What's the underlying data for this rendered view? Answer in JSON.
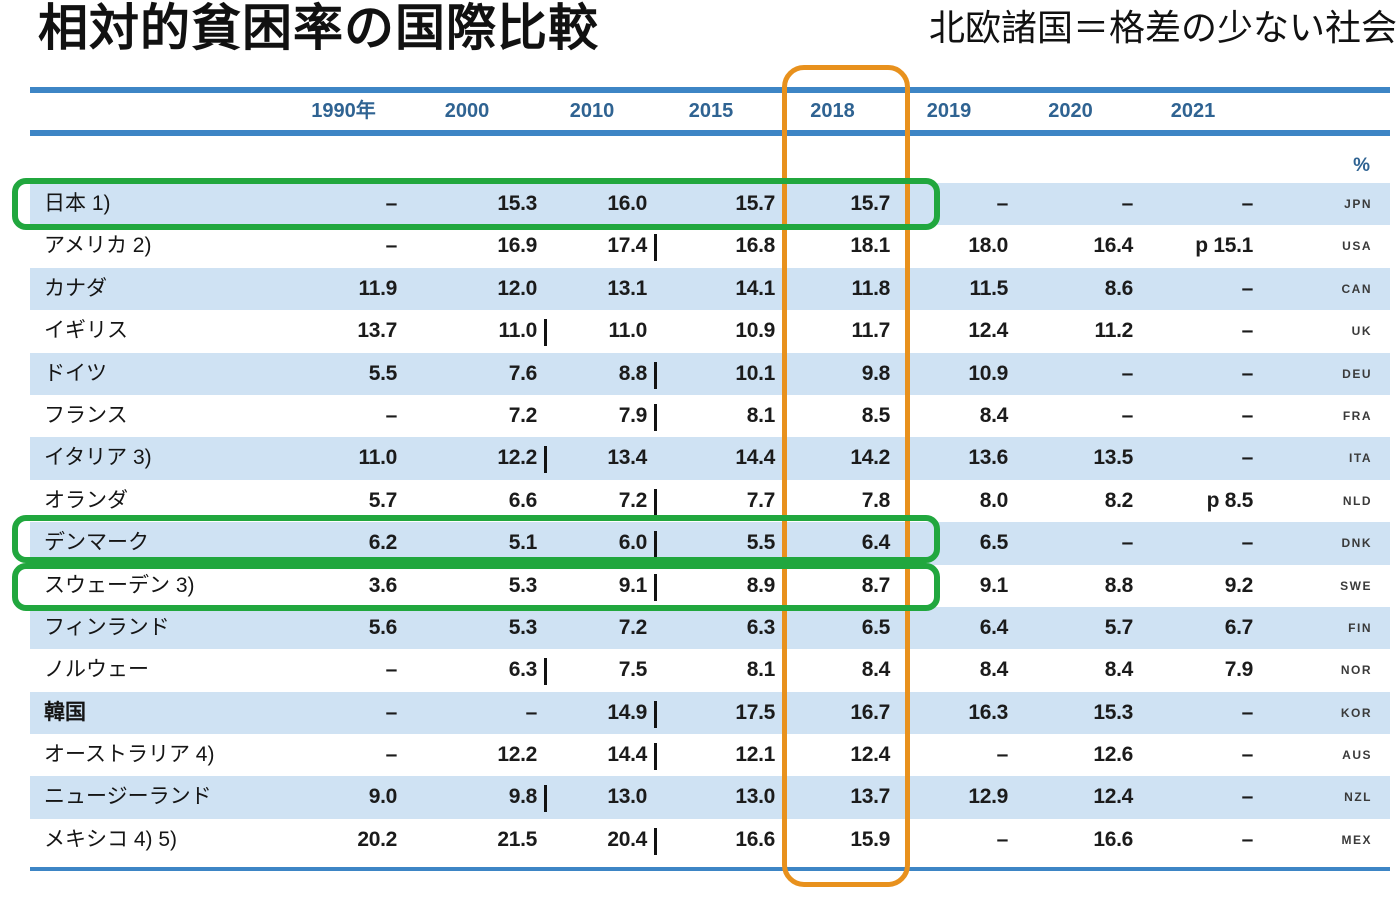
{
  "chart_data": {
    "type": "table",
    "title": "相対的貧困率の国際比較",
    "subtitle": "北欧諸国＝格差の少ない社会",
    "unit": "%",
    "columns": [
      "1990年",
      "2000",
      "2010",
      "2015",
      "2018",
      "2019",
      "2020",
      "2021"
    ],
    "rows": [
      {
        "label": "日本 1)",
        "code": "JPN",
        "bold": false,
        "break_after": 3,
        "values": [
          "–",
          "15.3",
          "16.0",
          "15.7",
          "15.7",
          "–",
          "–",
          "–"
        ]
      },
      {
        "label": "アメリカ 2)",
        "code": "USA",
        "bold": false,
        "break_after": 2,
        "values": [
          "–",
          "16.9",
          "17.4",
          "16.8",
          "18.1",
          "18.0",
          "16.4",
          "p 15.1"
        ]
      },
      {
        "label": "カナダ",
        "code": "CAN",
        "bold": false,
        "break_after": null,
        "values": [
          "11.9",
          "12.0",
          "13.1",
          "14.1",
          "11.8",
          "11.5",
          "8.6",
          "–"
        ]
      },
      {
        "label": "イギリス",
        "code": "UK",
        "bold": false,
        "break_after": 1,
        "values": [
          "13.7",
          "11.0",
          "11.0",
          "10.9",
          "11.7",
          "12.4",
          "11.2",
          "–"
        ]
      },
      {
        "label": "ドイツ",
        "code": "DEU",
        "bold": false,
        "break_after": 2,
        "values": [
          "5.5",
          "7.6",
          "8.8",
          "10.1",
          "9.8",
          "10.9",
          "–",
          "–"
        ]
      },
      {
        "label": "フランス",
        "code": "FRA",
        "bold": false,
        "break_after": 2,
        "values": [
          "–",
          "7.2",
          "7.9",
          "8.1",
          "8.5",
          "8.4",
          "–",
          "–"
        ]
      },
      {
        "label": "イタリア 3)",
        "code": "ITA",
        "bold": false,
        "break_after": 1,
        "values": [
          "11.0",
          "12.2",
          "13.4",
          "14.4",
          "14.2",
          "13.6",
          "13.5",
          "–"
        ]
      },
      {
        "label": "オランダ",
        "code": "NLD",
        "bold": false,
        "break_after": 2,
        "values": [
          "5.7",
          "6.6",
          "7.2",
          "7.7",
          "7.8",
          "8.0",
          "8.2",
          "p 8.5"
        ]
      },
      {
        "label": "デンマーク",
        "code": "DNK",
        "bold": false,
        "break_after": 2,
        "values": [
          "6.2",
          "5.1",
          "6.0",
          "5.5",
          "6.4",
          "6.5",
          "–",
          "–"
        ]
      },
      {
        "label": "スウェーデン 3)",
        "code": "SWE",
        "bold": false,
        "break_after": 2,
        "values": [
          "3.6",
          "5.3",
          "9.1",
          "8.9",
          "8.7",
          "9.1",
          "8.8",
          "9.2"
        ]
      },
      {
        "label": "フィンランド",
        "code": "FIN",
        "bold": false,
        "break_after": null,
        "values": [
          "5.6",
          "5.3",
          "7.2",
          "6.3",
          "6.5",
          "6.4",
          "5.7",
          "6.7"
        ]
      },
      {
        "label": "ノルウェー",
        "code": "NOR",
        "bold": false,
        "break_after": 1,
        "values": [
          "–",
          "6.3",
          "7.5",
          "8.1",
          "8.4",
          "8.4",
          "8.4",
          "7.9"
        ]
      },
      {
        "label": "韓国",
        "code": "KOR",
        "bold": true,
        "break_after": 2,
        "values": [
          "–",
          "–",
          "14.9",
          "17.5",
          "16.7",
          "16.3",
          "15.3",
          "–"
        ]
      },
      {
        "label": "オーストラリア 4)",
        "code": "AUS",
        "bold": false,
        "break_after": 2,
        "values": [
          "–",
          "12.2",
          "14.4",
          "12.1",
          "12.4",
          "–",
          "12.6",
          "–"
        ]
      },
      {
        "label": "ニュージーランド",
        "code": "NZL",
        "bold": false,
        "break_after": 1,
        "values": [
          "9.0",
          "9.8",
          "13.0",
          "13.0",
          "13.7",
          "12.9",
          "12.4",
          "–"
        ]
      },
      {
        "label": "メキシコ 4) 5)",
        "code": "MEX",
        "bold": false,
        "break_after": 2,
        "values": [
          "20.2",
          "21.5",
          "20.4",
          "16.6",
          "15.9",
          "–",
          "16.6",
          "–"
        ]
      }
    ],
    "highlights": {
      "orange_box_column": "2018",
      "green_box_rows": [
        "日本",
        "デンマーク",
        "スウェーデン"
      ]
    }
  },
  "colors": {
    "rule_blue": "#3d85c5",
    "header_text_blue": "#2f6392",
    "row_band_blue": "#cfe2f3",
    "highlight_green": "#21a73e",
    "highlight_orange": "#e8911d",
    "text_black": "#1b1b1b",
    "code_gray": "#3a3a3a"
  }
}
